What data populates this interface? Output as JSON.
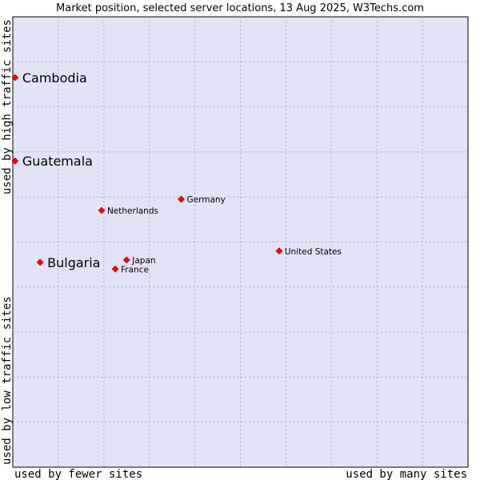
{
  "chart_data": {
    "type": "scatter",
    "title": "Market position, selected server locations, 13 Aug 2025, W3Techs.com",
    "xlabel_left": "used by fewer sites",
    "xlabel_right": "used by many sites",
    "ylabel_bottom": "used by low traffic sites",
    "ylabel_top": "used by high traffic sites",
    "xlim": [
      0,
      10
    ],
    "ylim": [
      0,
      10
    ],
    "grid": true,
    "marker_color": "#ff0000",
    "plot_background": "#e3e3f8",
    "points": [
      {
        "label": "Cambodia",
        "x": 0.05,
        "y": 8.65,
        "emphasis": true
      },
      {
        "label": "Guatemala",
        "x": 0.05,
        "y": 6.8,
        "emphasis": true
      },
      {
        "label": "Bulgaria",
        "x": 0.6,
        "y": 4.55,
        "emphasis": true
      },
      {
        "label": "Germany",
        "x": 3.7,
        "y": 5.95,
        "emphasis": false
      },
      {
        "label": "Netherlands",
        "x": 1.95,
        "y": 5.7,
        "emphasis": false
      },
      {
        "label": "Japan",
        "x": 2.5,
        "y": 4.6,
        "emphasis": false
      },
      {
        "label": "France",
        "x": 2.25,
        "y": 4.4,
        "emphasis": false
      },
      {
        "label": "United States",
        "x": 5.85,
        "y": 4.8,
        "emphasis": false
      }
    ]
  }
}
